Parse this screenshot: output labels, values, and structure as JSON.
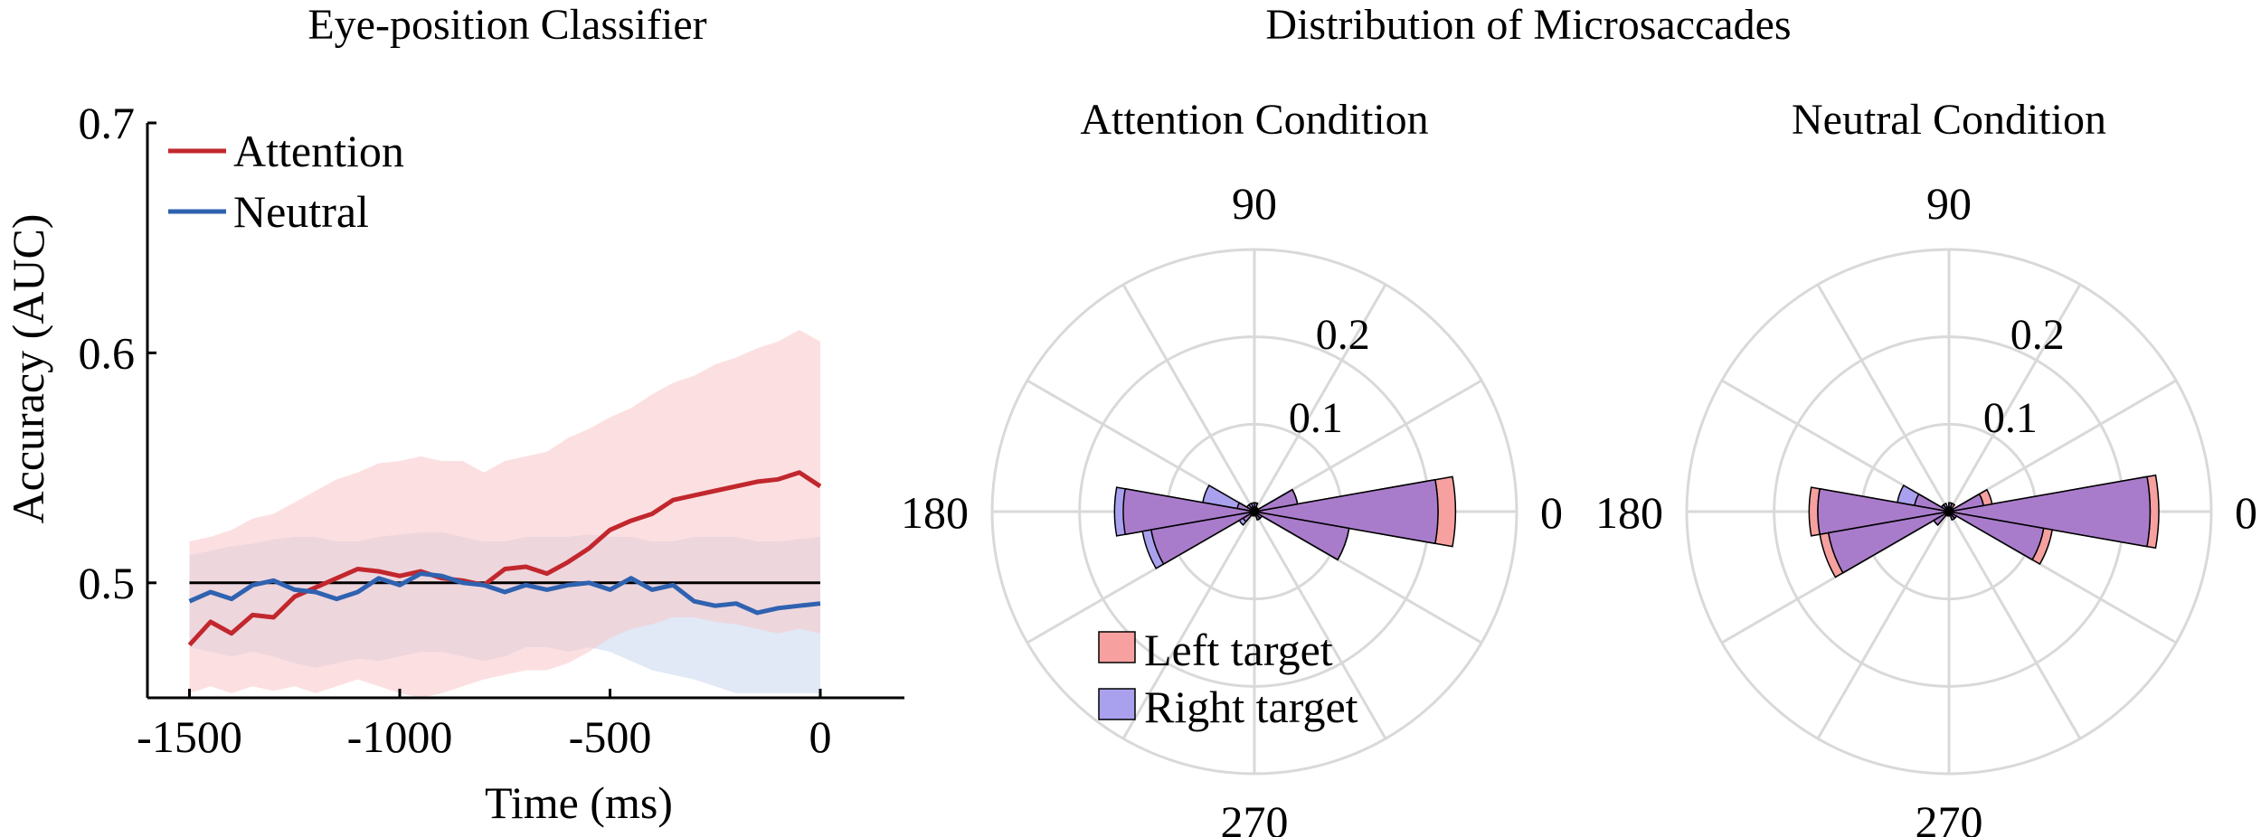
{
  "colors": {
    "attention": "#c1272d",
    "neutral": "#2f62b0",
    "attention_band": "#f9c7c9",
    "neutral_band": "#c9d6ee",
    "left_target": "#f6a0a0",
    "right_target": "#a9a0ee",
    "overlap": "#a97ccb",
    "grid": "#d9d9d9",
    "axis": "#000000"
  },
  "chart_data": [
    {
      "type": "line",
      "title": "Eye-position Classifier",
      "xlabel": "Time (ms)",
      "ylabel": "Accuracy (AUC)",
      "xlim": [
        -1600,
        200
      ],
      "ylim": [
        0.45,
        0.7
      ],
      "xticks": [
        -1500,
        -1000,
        -500,
        0
      ],
      "xtick_labels": [
        "-1500",
        "-1000",
        "-500",
        "0"
      ],
      "yticks": [
        0.5,
        0.6,
        0.7
      ],
      "ytick_labels": [
        "0.5",
        "0.6",
        "0.7"
      ],
      "reference_line": 0.5,
      "legend_position": "top-left",
      "grid": false,
      "series": [
        {
          "name": "Attention",
          "x": [
            -1500,
            -1450,
            -1400,
            -1350,
            -1300,
            -1250,
            -1200,
            -1150,
            -1100,
            -1050,
            -1000,
            -950,
            -900,
            -850,
            -800,
            -750,
            -700,
            -650,
            -600,
            -550,
            -500,
            -450,
            -400,
            -350,
            -300,
            -250,
            -200,
            -150,
            -100,
            -50,
            0
          ],
          "values": [
            0.473,
            0.483,
            0.478,
            0.486,
            0.485,
            0.494,
            0.498,
            0.502,
            0.506,
            0.505,
            0.503,
            0.505,
            0.502,
            0.501,
            0.499,
            0.506,
            0.507,
            0.504,
            0.509,
            0.515,
            0.523,
            0.527,
            0.53,
            0.536,
            0.538,
            0.54,
            0.542,
            0.544,
            0.545,
            0.548,
            0.542
          ],
          "band_low": [
            0.452,
            0.455,
            0.452,
            0.455,
            0.453,
            0.455,
            0.452,
            0.455,
            0.458,
            0.455,
            0.452,
            0.45,
            0.452,
            0.455,
            0.458,
            0.46,
            0.462,
            0.462,
            0.465,
            0.47,
            0.476,
            0.48,
            0.482,
            0.485,
            0.485,
            0.483,
            0.482,
            0.48,
            0.478,
            0.48,
            0.478
          ],
          "band_high": [
            0.518,
            0.52,
            0.523,
            0.528,
            0.53,
            0.535,
            0.54,
            0.545,
            0.548,
            0.552,
            0.553,
            0.555,
            0.553,
            0.553,
            0.548,
            0.553,
            0.555,
            0.557,
            0.563,
            0.567,
            0.572,
            0.576,
            0.582,
            0.587,
            0.59,
            0.595,
            0.598,
            0.602,
            0.605,
            0.61,
            0.605
          ]
        },
        {
          "name": "Neutral",
          "x": [
            -1500,
            -1450,
            -1400,
            -1350,
            -1300,
            -1250,
            -1200,
            -1150,
            -1100,
            -1050,
            -1000,
            -950,
            -900,
            -850,
            -800,
            -750,
            -700,
            -650,
            -600,
            -550,
            -500,
            -450,
            -400,
            -350,
            -300,
            -250,
            -200,
            -150,
            -100,
            -50,
            0
          ],
          "values": [
            0.492,
            0.496,
            0.493,
            0.499,
            0.501,
            0.497,
            0.496,
            0.493,
            0.496,
            0.502,
            0.499,
            0.504,
            0.503,
            0.5,
            0.499,
            0.496,
            0.499,
            0.497,
            0.499,
            0.5,
            0.497,
            0.502,
            0.497,
            0.499,
            0.492,
            0.49,
            0.491,
            0.487,
            0.489,
            0.49,
            0.491
          ],
          "band_low": [
            0.472,
            0.47,
            0.468,
            0.47,
            0.468,
            0.465,
            0.463,
            0.465,
            0.467,
            0.466,
            0.468,
            0.47,
            0.47,
            0.468,
            0.466,
            0.468,
            0.472,
            0.472,
            0.47,
            0.472,
            0.47,
            0.466,
            0.462,
            0.46,
            0.458,
            0.455,
            0.452,
            0.452,
            0.452,
            0.452,
            0.452
          ],
          "band_high": [
            0.512,
            0.514,
            0.516,
            0.517,
            0.519,
            0.52,
            0.52,
            0.518,
            0.518,
            0.52,
            0.521,
            0.522,
            0.522,
            0.52,
            0.518,
            0.518,
            0.52,
            0.52,
            0.52,
            0.521,
            0.52,
            0.52,
            0.518,
            0.518,
            0.52,
            0.52,
            0.52,
            0.518,
            0.518,
            0.519,
            0.52
          ]
        }
      ]
    },
    {
      "type": "polar-histogram",
      "group_title": "Distribution of Microsaccades",
      "title": "Attention Condition",
      "theta_ticks": [
        0,
        90,
        180,
        270
      ],
      "theta_tick_labels": [
        "0",
        "90",
        "180",
        "270"
      ],
      "r_ticks": [
        0.1,
        0.2
      ],
      "r_tick_labels": [
        "0.1",
        "0.2"
      ],
      "r_max": 0.3,
      "bin_width_deg": 20,
      "legend_position": "bottom-left",
      "series": [
        {
          "name": "Left target",
          "bin_centers": [
            0,
            20,
            40,
            60,
            80,
            100,
            120,
            140,
            160,
            180,
            200,
            220,
            240,
            260,
            280,
            300,
            320,
            340
          ],
          "values": [
            0.23,
            0.05,
            0.005,
            0.005,
            0.01,
            0.005,
            0.005,
            0.005,
            0.02,
            0.15,
            0.12,
            0.015,
            0.005,
            0.005,
            0.005,
            0.01,
            0.01,
            0.11
          ]
        },
        {
          "name": "Right target",
          "bin_centers": [
            0,
            20,
            40,
            60,
            80,
            100,
            120,
            140,
            160,
            180,
            200,
            220,
            240,
            260,
            280,
            300,
            320,
            340
          ],
          "values": [
            0.21,
            0.05,
            0.005,
            0.005,
            0.01,
            0.01,
            0.01,
            0.01,
            0.06,
            0.16,
            0.13,
            0.02,
            0.005,
            0.005,
            0.005,
            0.01,
            0.01,
            0.11
          ]
        }
      ]
    },
    {
      "type": "polar-histogram",
      "title": "Neutral Condition",
      "theta_ticks": [
        0,
        90,
        180,
        270
      ],
      "theta_tick_labels": [
        "0",
        "90",
        "180",
        "270"
      ],
      "r_ticks": [
        0.1,
        0.2
      ],
      "r_tick_labels": [
        "0.1",
        "0.2"
      ],
      "r_max": 0.3,
      "bin_width_deg": 20,
      "series": [
        {
          "name": "Left target",
          "bin_centers": [
            0,
            20,
            40,
            60,
            80,
            100,
            120,
            140,
            160,
            180,
            200,
            220,
            240,
            260,
            280,
            300,
            320,
            340
          ],
          "values": [
            0.24,
            0.05,
            0.005,
            0.01,
            0.01,
            0.005,
            0.005,
            0.01,
            0.04,
            0.16,
            0.15,
            0.02,
            0.005,
            0.005,
            0.005,
            0.01,
            0.01,
            0.12
          ]
        },
        {
          "name": "Right target",
          "bin_centers": [
            0,
            20,
            40,
            60,
            80,
            100,
            120,
            140,
            160,
            180,
            200,
            220,
            240,
            260,
            280,
            300,
            320,
            340
          ],
          "values": [
            0.23,
            0.04,
            0.005,
            0.005,
            0.01,
            0.005,
            0.01,
            0.01,
            0.06,
            0.15,
            0.14,
            0.02,
            0.005,
            0.005,
            0.005,
            0.01,
            0.01,
            0.11
          ]
        }
      ]
    }
  ]
}
